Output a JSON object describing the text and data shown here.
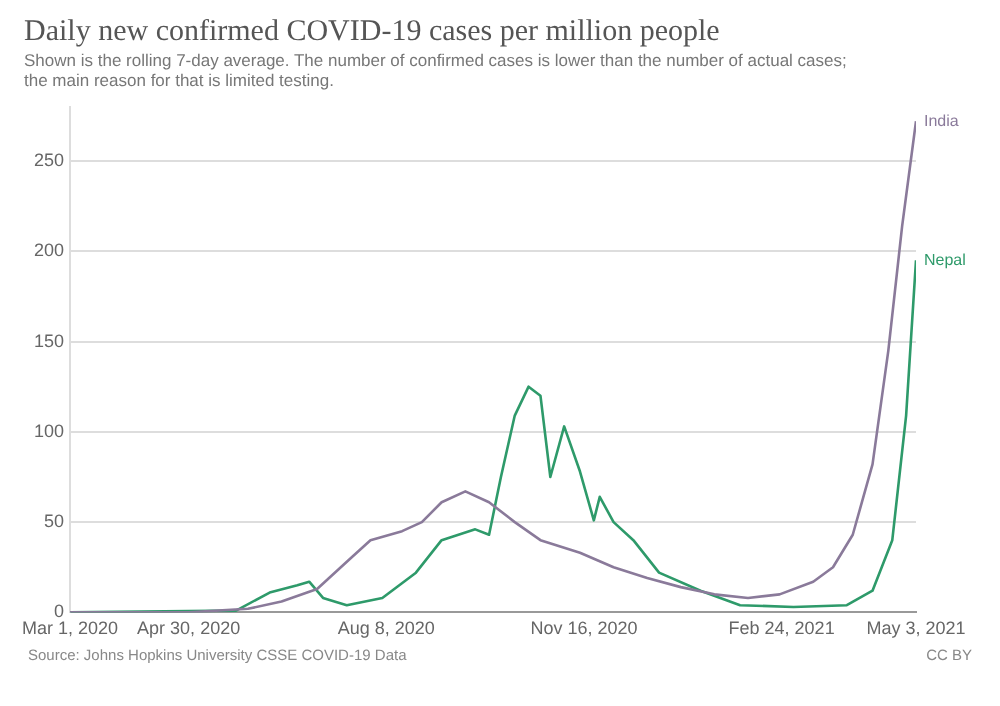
{
  "chart_data": {
    "type": "line",
    "title": "Daily new confirmed COVID-19 cases per million people",
    "subtitle": "Shown is the rolling 7-day average. The number of confirmed cases is lower than the number of actual cases; the main reason for that is limited testing.",
    "annotations": [
      "Source: Johns Hopkins University CSSE COVID-19 Data",
      "CC BY"
    ],
    "xlim": [
      "2020-03-01",
      "2021-05-03"
    ],
    "xticks": [
      {
        "value": "2020-03-01",
        "label": "Mar 1, 2020"
      },
      {
        "value": "2020-04-30",
        "label": "Apr 30, 2020"
      },
      {
        "value": "2020-08-08",
        "label": "Aug 8, 2020"
      },
      {
        "value": "2020-11-16",
        "label": "Nov 16, 2020"
      },
      {
        "value": "2021-02-24",
        "label": "Feb 24, 2021"
      },
      {
        "value": "2021-05-03",
        "label": "May 3, 2021"
      }
    ],
    "ylim": [
      0,
      280
    ],
    "yticks": [
      0,
      50,
      100,
      150,
      200,
      250
    ],
    "grid": "y",
    "legend": false,
    "marker": "none",
    "line_style": "solid",
    "series": [
      {
        "name": "India",
        "color": "#8a7a9a",
        "x": [
          "2020-03-01",
          "2020-04-30",
          "2020-05-30",
          "2020-06-16",
          "2020-07-04",
          "2020-07-20",
          "2020-07-31",
          "2020-08-16",
          "2020-08-26",
          "2020-09-05",
          "2020-09-17",
          "2020-09-29",
          "2020-10-12",
          "2020-10-25",
          "2020-11-14",
          "2020-12-01",
          "2020-12-18",
          "2021-01-04",
          "2021-01-21",
          "2021-02-07",
          "2021-02-23",
          "2021-03-12",
          "2021-03-22",
          "2021-04-01",
          "2021-04-11",
          "2021-04-19",
          "2021-04-26",
          "2021-05-03"
        ],
        "values": [
          0,
          0,
          2,
          6,
          13,
          29,
          40,
          45,
          50,
          61,
          67,
          61,
          50,
          40,
          33,
          25,
          19,
          14,
          10,
          8,
          10,
          17,
          25,
          43,
          82,
          145,
          214,
          272
        ]
      },
      {
        "name": "Nepal",
        "color": "#2e9a6a",
        "x": [
          "2020-03-01",
          "2020-05-24",
          "2020-06-10",
          "2020-06-24",
          "2020-06-30",
          "2020-07-07",
          "2020-07-19",
          "2020-08-06",
          "2020-08-23",
          "2020-09-05",
          "2020-09-22",
          "2020-09-29",
          "2020-10-05",
          "2020-10-12",
          "2020-10-19",
          "2020-10-25",
          "2020-10-30",
          "2020-11-06",
          "2020-11-14",
          "2020-11-21",
          "2020-11-24",
          "2020-12-01",
          "2020-12-11",
          "2020-12-24",
          "2021-01-14",
          "2021-02-03",
          "2021-03-02",
          "2021-03-29",
          "2021-04-11",
          "2021-04-21",
          "2021-04-28",
          "2021-05-03"
        ],
        "values": [
          0,
          1,
          11,
          15,
          17,
          8,
          4,
          8,
          22,
          40,
          46,
          43,
          75,
          109,
          125,
          120,
          75,
          103,
          78,
          51,
          64,
          50,
          40,
          22,
          12,
          4,
          3,
          4,
          12,
          40,
          109,
          195
        ]
      }
    ]
  }
}
